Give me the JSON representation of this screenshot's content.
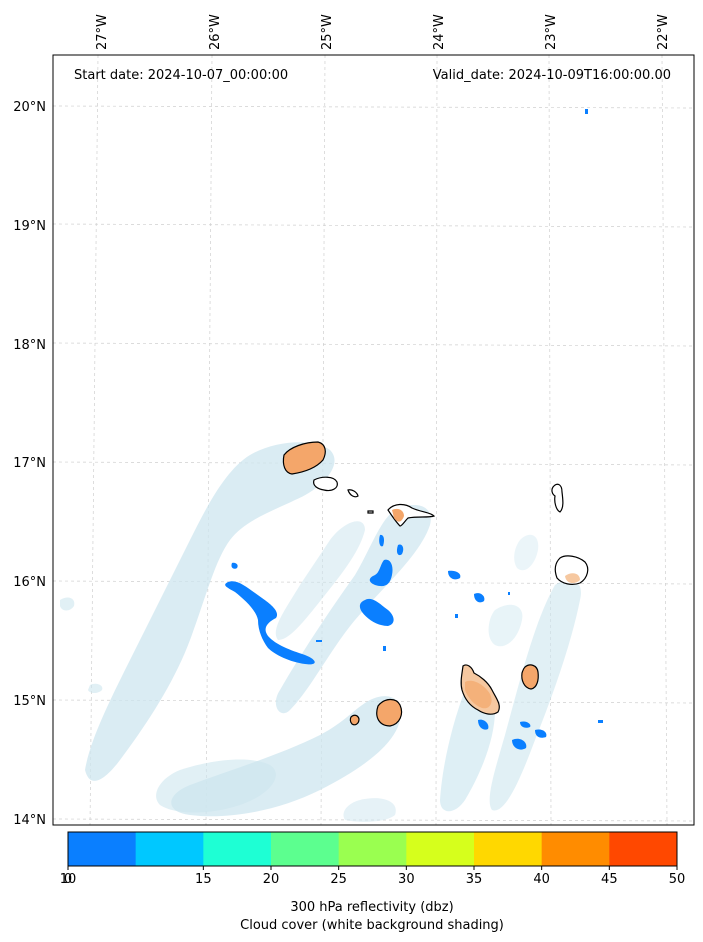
{
  "header": {
    "start_date": "Start date: 2024-10-07_00:00:00",
    "valid_date": "Valid_date: 2024-10-09T16:00:00.00"
  },
  "axes": {
    "longitude_labels": [
      "27°W",
      "26°W",
      "25°W",
      "24°W",
      "23°W",
      "22°W"
    ],
    "latitude_labels": [
      "20°N",
      "19°N",
      "18°N",
      "17°N",
      "16°N",
      "15°N",
      "14°N"
    ]
  },
  "colorbar": {
    "ticks": [
      "0",
      "5",
      "10",
      "15",
      "20",
      "25",
      "30",
      "35",
      "40",
      "45",
      "50"
    ],
    "colors": [
      "#0a7fff",
      "#00c8ff",
      "#1effd4",
      "#5cff8f",
      "#9aff50",
      "#d6ff1c",
      "#ffd800",
      "#ff8c00",
      "#ff4800"
    ],
    "label_line1": "300 hPa reflectivity (dbz)",
    "label_line2": "Cloud cover (white background shading)"
  },
  "colors": {
    "cloud": "#cde6ef",
    "reflectivity_low": "#0a7fff",
    "island_fill": "#f4a66a",
    "grid": "#cccccc"
  }
}
